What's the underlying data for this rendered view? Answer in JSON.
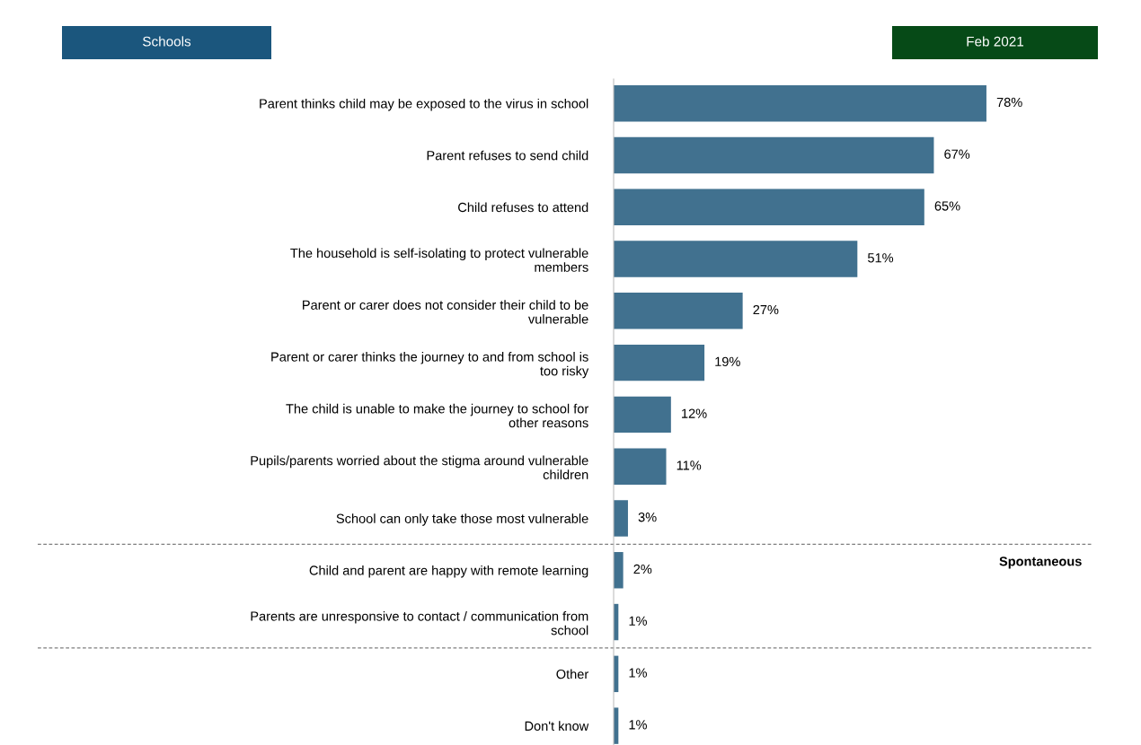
{
  "chart_data": {
    "type": "bar",
    "orientation": "horizontal",
    "title": "Schools",
    "subtitle": "Feb 2021",
    "categories": [
      "Parent thinks child may be exposed to the virus in school",
      "Parent refuses to send child",
      "Child refuses to attend",
      "The household is self-isolating to protect vulnerable members",
      "Parent or carer does not consider their child to be vulnerable",
      "Parent or carer thinks the journey to and from school is too risky",
      "The child is unable to make the journey to school for other reasons",
      "Pupils/parents worried about the stigma around vulnerable children",
      "School can only take those most vulnerable",
      "Child and parent are happy with remote learning",
      "Parents are unresponsive to contact / communication from school",
      "Other",
      "Don't know"
    ],
    "values": [
      78,
      67,
      65,
      51,
      27,
      19,
      12,
      11,
      3,
      2,
      1,
      1,
      1
    ],
    "value_labels": [
      "78%",
      "67%",
      "65%",
      "51%",
      "27%",
      "19%",
      "12%",
      "11%",
      "3%",
      "2%",
      "1%",
      "1%",
      "1%"
    ],
    "color": "#41718f",
    "xlim": [
      0,
      100
    ],
    "tick_labels": "y",
    "grid": false,
    "legend": false,
    "annotations": [
      "Spontaneous"
    ]
  }
}
